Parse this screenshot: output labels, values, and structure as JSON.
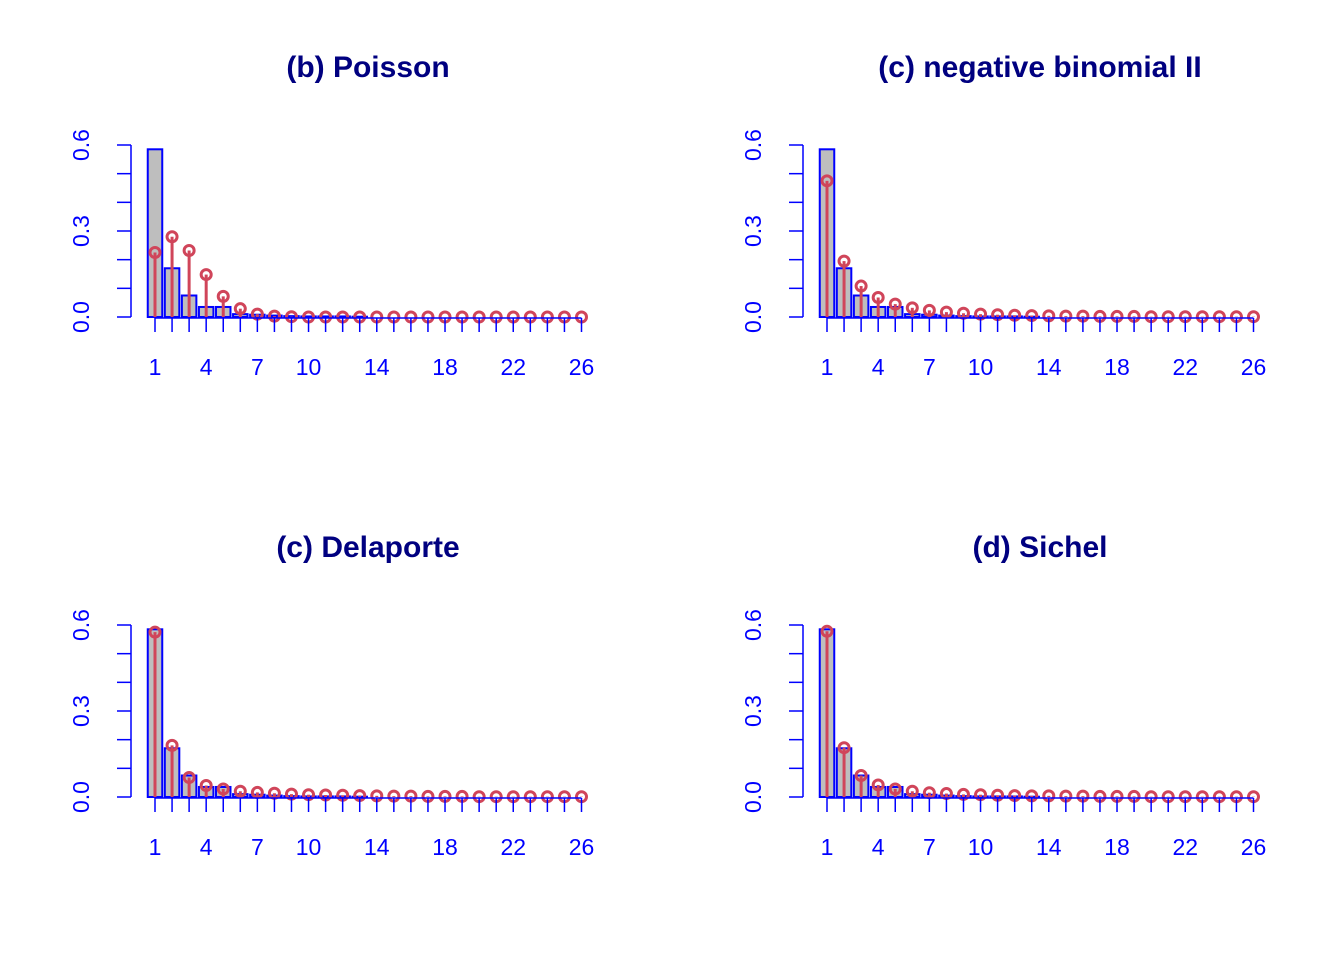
{
  "colors": {
    "axis": "#0000ff",
    "title": "#000080",
    "bar_fill": "#bebebe",
    "bar_stroke": "#0000ff",
    "fitted": "#d0455a"
  },
  "chart_data": [
    {
      "type": "bar",
      "title": "(b) Poisson",
      "xlabel": "",
      "ylabel": "",
      "x_tick_labels": [
        "1",
        "4",
        "7",
        "10",
        "14",
        "18",
        "22",
        "26"
      ],
      "y_tick_labels": [
        "0.0",
        "0.3",
        "0.6"
      ],
      "xlim": [
        1,
        26
      ],
      "ylim": [
        0,
        0.6
      ],
      "grid": false,
      "categories": [
        1,
        2,
        3,
        4,
        5,
        6,
        7,
        8,
        9,
        10,
        11,
        12,
        13,
        14,
        15,
        16,
        17,
        18,
        19,
        20,
        21,
        22,
        23,
        24,
        25,
        26
      ],
      "series": [
        {
          "values": [
            0.585,
            0.17,
            0.075,
            0.035,
            0.035,
            0.01,
            0.008,
            0.005,
            0.003,
            0.002,
            0.002,
            0.002,
            0.001,
            0,
            0,
            0,
            0,
            0,
            0,
            0,
            0,
            0,
            0,
            0,
            0,
            0
          ]
        },
        {
          "values": [
            0.225,
            0.28,
            0.232,
            0.148,
            0.072,
            0.029,
            0.01,
            0.003,
            0.001,
            0,
            0,
            0,
            0,
            0,
            0,
            0,
            0,
            0,
            0,
            0,
            0,
            0,
            0,
            0,
            0,
            0
          ]
        }
      ]
    },
    {
      "type": "bar",
      "title": "(c) negative binomial II",
      "xlabel": "",
      "ylabel": "",
      "x_tick_labels": [
        "1",
        "4",
        "7",
        "10",
        "14",
        "18",
        "22",
        "26"
      ],
      "y_tick_labels": [
        "0.0",
        "0.3",
        "0.6"
      ],
      "xlim": [
        1,
        26
      ],
      "ylim": [
        0,
        0.6
      ],
      "grid": false,
      "categories": [
        1,
        2,
        3,
        4,
        5,
        6,
        7,
        8,
        9,
        10,
        11,
        12,
        13,
        14,
        15,
        16,
        17,
        18,
        19,
        20,
        21,
        22,
        23,
        24,
        25,
        26
      ],
      "series": [
        {
          "values": [
            0.585,
            0.17,
            0.075,
            0.035,
            0.035,
            0.01,
            0.008,
            0.005,
            0.003,
            0.002,
            0.002,
            0.002,
            0.001,
            0,
            0,
            0,
            0,
            0,
            0,
            0,
            0,
            0,
            0,
            0,
            0,
            0
          ]
        },
        {
          "values": [
            0.475,
            0.195,
            0.108,
            0.068,
            0.045,
            0.032,
            0.023,
            0.017,
            0.013,
            0.01,
            0.008,
            0.006,
            0.005,
            0.004,
            0.003,
            0.003,
            0.002,
            0.002,
            0.002,
            0.001,
            0.001,
            0.001,
            0.001,
            0.001,
            0.001,
            0.001
          ]
        }
      ]
    },
    {
      "type": "bar",
      "title": "(c) Delaporte",
      "xlabel": "",
      "ylabel": "",
      "x_tick_labels": [
        "1",
        "4",
        "7",
        "10",
        "14",
        "18",
        "22",
        "26"
      ],
      "y_tick_labels": [
        "0.0",
        "0.3",
        "0.6"
      ],
      "xlim": [
        1,
        26
      ],
      "ylim": [
        0,
        0.6
      ],
      "grid": false,
      "categories": [
        1,
        2,
        3,
        4,
        5,
        6,
        7,
        8,
        9,
        10,
        11,
        12,
        13,
        14,
        15,
        16,
        17,
        18,
        19,
        20,
        21,
        22,
        23,
        24,
        25,
        26
      ],
      "series": [
        {
          "values": [
            0.585,
            0.17,
            0.075,
            0.035,
            0.035,
            0.01,
            0.008,
            0.005,
            0.003,
            0.002,
            0.002,
            0.002,
            0.001,
            0,
            0,
            0,
            0,
            0,
            0,
            0,
            0,
            0,
            0,
            0,
            0,
            0
          ]
        },
        {
          "values": [
            0.575,
            0.18,
            0.068,
            0.04,
            0.028,
            0.02,
            0.016,
            0.013,
            0.01,
            0.008,
            0.007,
            0.006,
            0.005,
            0.004,
            0.003,
            0.003,
            0.002,
            0.002,
            0.002,
            0.001,
            0.001,
            0.001,
            0.001,
            0.001,
            0.001,
            0.001
          ]
        }
      ]
    },
    {
      "type": "bar",
      "title": "(d) Sichel",
      "xlabel": "",
      "ylabel": "",
      "x_tick_labels": [
        "1",
        "4",
        "7",
        "10",
        "14",
        "18",
        "22",
        "26"
      ],
      "y_tick_labels": [
        "0.0",
        "0.3",
        "0.6"
      ],
      "xlim": [
        1,
        26
      ],
      "ylim": [
        0,
        0.6
      ],
      "grid": false,
      "categories": [
        1,
        2,
        3,
        4,
        5,
        6,
        7,
        8,
        9,
        10,
        11,
        12,
        13,
        14,
        15,
        16,
        17,
        18,
        19,
        20,
        21,
        22,
        23,
        24,
        25,
        26
      ],
      "series": [
        {
          "values": [
            0.585,
            0.17,
            0.075,
            0.035,
            0.035,
            0.01,
            0.008,
            0.005,
            0.003,
            0.002,
            0.002,
            0.002,
            0.001,
            0,
            0,
            0,
            0,
            0,
            0,
            0,
            0,
            0,
            0,
            0,
            0,
            0
          ]
        },
        {
          "values": [
            0.578,
            0.172,
            0.075,
            0.042,
            0.028,
            0.02,
            0.015,
            0.012,
            0.009,
            0.008,
            0.006,
            0.005,
            0.004,
            0.004,
            0.003,
            0.003,
            0.002,
            0.002,
            0.002,
            0.001,
            0.001,
            0.001,
            0.001,
            0.001,
            0.001,
            0.001
          ]
        }
      ]
    }
  ]
}
